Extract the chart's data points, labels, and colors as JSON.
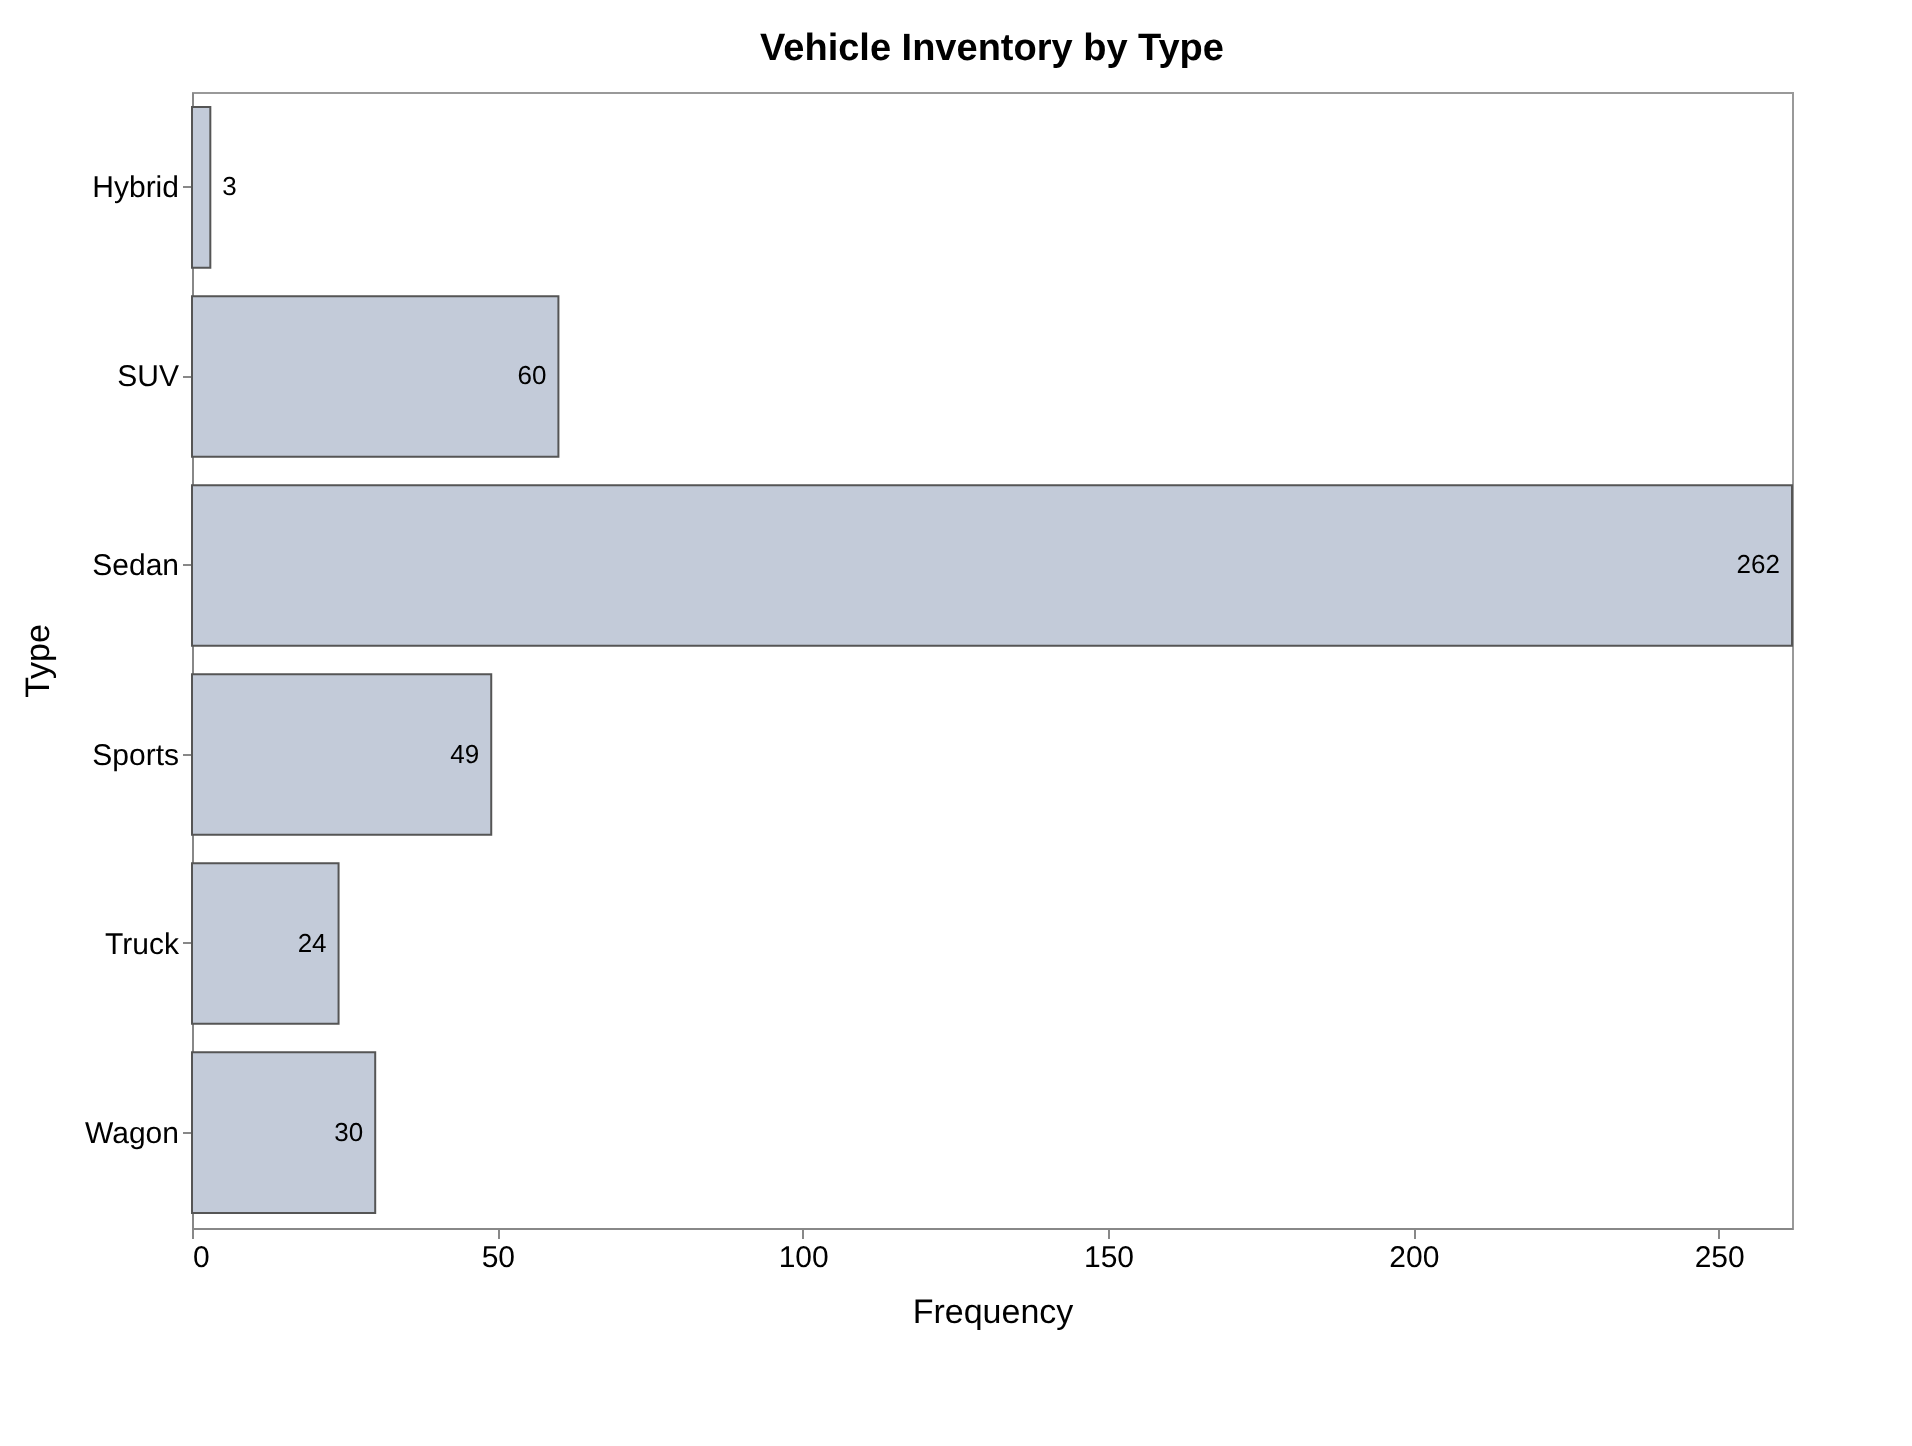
{
  "chart_data": {
    "type": "bar",
    "orientation": "horizontal",
    "title": "Vehicle Inventory by Type",
    "xlabel": "Frequency",
    "ylabel": "Type",
    "categories": [
      "Hybrid",
      "SUV",
      "Sedan",
      "Sports",
      "Truck",
      "Wagon"
    ],
    "values": [
      3,
      60,
      262,
      49,
      24,
      30
    ],
    "color": "#c3cbd9",
    "xlim": [
      0,
      262
    ],
    "xticks": [
      0,
      50,
      100,
      150,
      200,
      250
    ],
    "grid": false,
    "data_labels": true
  }
}
